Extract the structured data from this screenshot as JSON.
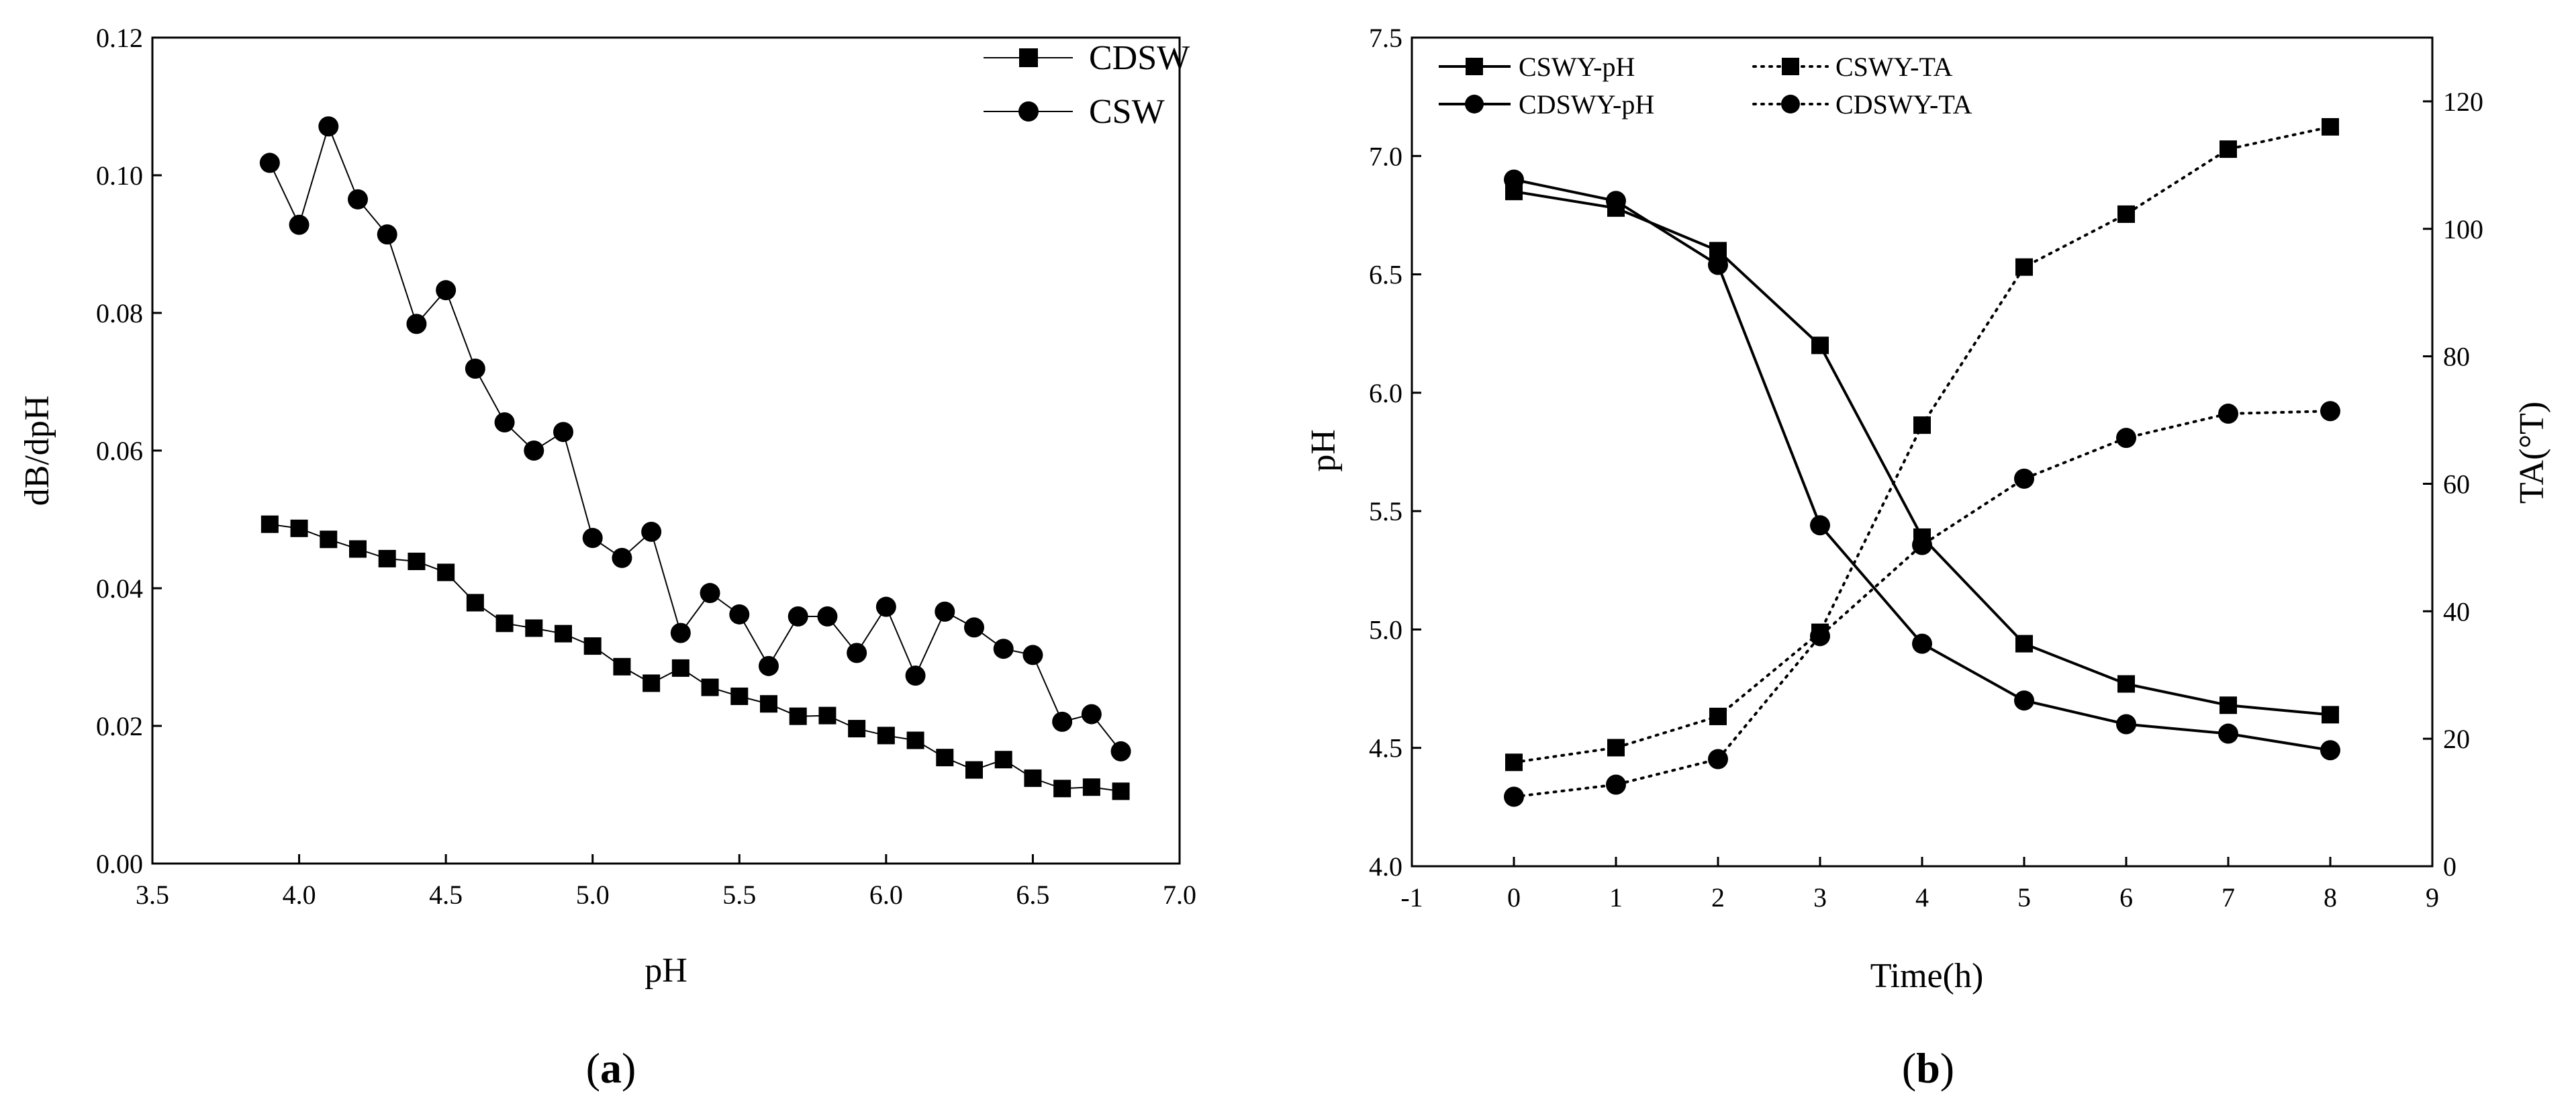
{
  "colors": {
    "line": "#000000",
    "background": "#ffffff"
  },
  "panels": {
    "a": {
      "label_open": "(",
      "label_letter": "a",
      "label_close": ")"
    },
    "b": {
      "label_open": "(",
      "label_letter": "b",
      "label_close": ")"
    }
  },
  "chart_data": [
    {
      "id": "a",
      "type": "line",
      "title": "",
      "xlabel": "pH",
      "ylabel": "dB/dpH",
      "xlim": [
        3.5,
        7.0
      ],
      "ylim": [
        0.0,
        0.12
      ],
      "xticks": [
        "3.5",
        "4.0",
        "4.5",
        "5.0",
        "5.5",
        "6.0",
        "6.5",
        "7.0"
      ],
      "yticks": [
        "0.00",
        "0.02",
        "0.04",
        "0.06",
        "0.08",
        "0.10",
        "0.12"
      ],
      "legend_position": "top-right",
      "series": [
        {
          "name": "CDSW",
          "marker": "square",
          "line_style": "solid",
          "x": [
            3.9,
            4.0,
            4.1,
            4.2,
            4.3,
            4.4,
            4.5,
            4.6,
            4.7,
            4.8,
            4.9,
            5.0,
            5.1,
            5.2,
            5.3,
            5.4,
            5.5,
            5.6,
            5.7,
            5.8,
            5.9,
            6.0,
            6.1,
            6.2,
            6.3,
            6.4,
            6.5,
            6.6,
            6.7,
            6.8
          ],
          "y": [
            0.0493,
            0.0487,
            0.0471,
            0.0457,
            0.0443,
            0.0439,
            0.0423,
            0.0379,
            0.0349,
            0.0342,
            0.0334,
            0.0316,
            0.0286,
            0.0262,
            0.0284,
            0.0256,
            0.0243,
            0.0232,
            0.0214,
            0.0215,
            0.0196,
            0.0186,
            0.0179,
            0.0154,
            0.0136,
            0.0151,
            0.0124,
            0.0109,
            0.0111,
            0.0105
          ]
        },
        {
          "name": "CSW",
          "marker": "circle",
          "line_style": "solid",
          "x": [
            3.9,
            4.0,
            4.1,
            4.2,
            4.3,
            4.4,
            4.5,
            4.6,
            4.7,
            4.8,
            4.9,
            5.0,
            5.1,
            5.2,
            5.3,
            5.4,
            5.5,
            5.6,
            5.7,
            5.8,
            5.9,
            6.0,
            6.1,
            6.2,
            6.3,
            6.4,
            6.5,
            6.6,
            6.7,
            6.8
          ],
          "y": [
            0.1018,
            0.0928,
            0.1071,
            0.0965,
            0.0914,
            0.0784,
            0.0833,
            0.0719,
            0.0641,
            0.06,
            0.0627,
            0.0473,
            0.0444,
            0.0482,
            0.0335,
            0.0393,
            0.0362,
            0.0287,
            0.0359,
            0.0359,
            0.0306,
            0.0373,
            0.0273,
            0.0366,
            0.0343,
            0.0312,
            0.0303,
            0.0206,
            0.0217,
            0.0163
          ]
        }
      ]
    },
    {
      "id": "b",
      "type": "line",
      "title": "",
      "xlabel": "Time(h)",
      "ylabel": "pH",
      "ylabel_right": "TA(°T)",
      "xlim": [
        -1,
        9
      ],
      "ylim": [
        4.0,
        7.5
      ],
      "ylim_right": [
        0,
        130
      ],
      "xticks": [
        "-1",
        "0",
        "1",
        "2",
        "3",
        "4",
        "5",
        "6",
        "7",
        "8",
        "9"
      ],
      "yticks": [
        "4.0",
        "4.5",
        "5.0",
        "5.5",
        "6.0",
        "6.5",
        "7.0",
        "7.5"
      ],
      "yticks_right": [
        "0",
        "20",
        "40",
        "60",
        "80",
        "100",
        "120"
      ],
      "legend_position": "top-left",
      "series": [
        {
          "name": "CSWY-pH",
          "axis": "left",
          "marker": "square",
          "line_style": "solid",
          "x": [
            0,
            1,
            2,
            3,
            4,
            5,
            6,
            7,
            8
          ],
          "y": [
            6.85,
            6.78,
            6.6,
            6.2,
            5.39,
            4.94,
            4.77,
            4.68,
            4.64
          ]
        },
        {
          "name": "CDSWY-pH",
          "axis": "left",
          "marker": "circle",
          "line_style": "solid",
          "x": [
            0,
            1,
            2,
            3,
            4,
            5,
            6,
            7,
            8
          ],
          "y": [
            6.9,
            6.81,
            6.54,
            5.44,
            4.94,
            4.7,
            4.6,
            4.56,
            4.49
          ]
        },
        {
          "name": "CSWY-TA",
          "axis": "right",
          "marker": "square",
          "line_style": "dotted",
          "x": [
            0,
            1,
            2,
            3,
            4,
            5,
            6,
            7,
            8
          ],
          "y": [
            16.3,
            18.6,
            23.5,
            36.7,
            69.2,
            94.0,
            102.3,
            112.5,
            116.0
          ]
        },
        {
          "name": "CDSWY-TA",
          "axis": "right",
          "marker": "circle",
          "line_style": "dotted",
          "x": [
            0,
            1,
            2,
            3,
            4,
            5,
            6,
            7,
            8
          ],
          "y": [
            10.9,
            12.8,
            16.8,
            36.1,
            50.4,
            60.8,
            67.2,
            71.0,
            71.4
          ]
        }
      ]
    }
  ]
}
